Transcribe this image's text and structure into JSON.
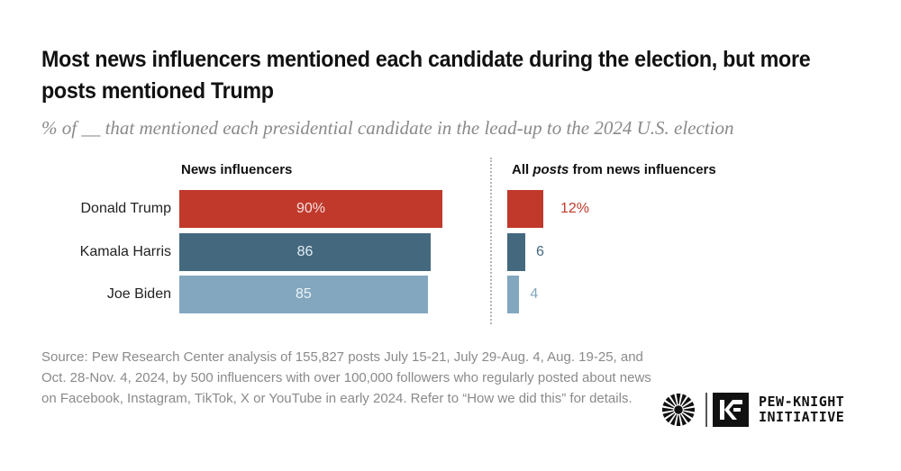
{
  "chart_data": {
    "type": "bar",
    "title": "Most news influencers mentioned each candidate during the election, but more posts mentioned Trump",
    "subtitle": "% of __ that mentioned each presidential candidate in the lead-up to the 2024 U.S. election",
    "categories": [
      "Donald Trump",
      "Kamala Harris",
      "Joe Biden"
    ],
    "series": [
      {
        "name": "News influencers",
        "values": [
          90,
          86,
          85
        ],
        "labels": [
          "90%",
          "86",
          "85"
        ]
      },
      {
        "name": "All posts from news influencers",
        "values": [
          12,
          6,
          4
        ],
        "labels": [
          "12%",
          "6",
          "4"
        ]
      }
    ],
    "colors": [
      "#c0392b",
      "#44697f",
      "#82a7bf"
    ],
    "orientation": "horizontal",
    "xlim": [
      0,
      100
    ],
    "grid": false,
    "legend": "none"
  },
  "panels": {
    "left_head": "News influencers",
    "right_head_pre": "All ",
    "right_head_em": "posts",
    "right_head_post": " from news influencers"
  },
  "source": "Source: Pew Research Center analysis of 155,827 posts July 15-21, July 29-Aug. 4, Aug. 19-25, and Oct. 28-Nov. 4, 2024, by 500 influencers with over 100,000 followers who regularly posted about news on Facebook, Instagram, TikTok, X or YouTube in early 2024. Refer to “How we did this” for details.",
  "logo": {
    "monogram": "KF",
    "line1": "PEW-KNIGHT",
    "line2": "INITIATIVE"
  }
}
